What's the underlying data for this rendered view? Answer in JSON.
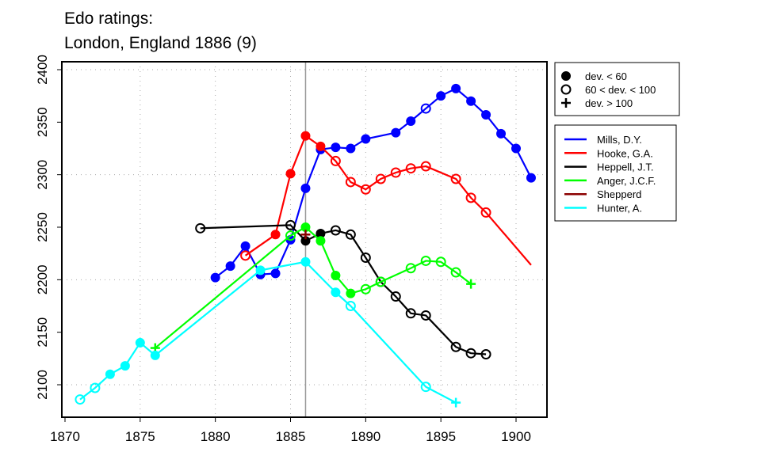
{
  "chart_data": {
    "type": "line",
    "title": [
      "Edo ratings:",
      "London, England 1886 (9)"
    ],
    "xlabel": "",
    "ylabel": "",
    "xlim": [
      1869.5,
      1902.2
    ],
    "ylim": [
      2070,
      2406
    ],
    "x_ticks": [
      1870,
      1875,
      1880,
      1885,
      1890,
      1895,
      1900
    ],
    "y_ticks": [
      2100,
      2150,
      2200,
      2250,
      2300,
      2350,
      2400
    ],
    "x_grid": [
      1875,
      1880,
      1885,
      1890,
      1895,
      1900
    ],
    "y_grid": [
      2100,
      2200,
      2300,
      2400
    ],
    "grid": true,
    "reference_year": 1886,
    "marker_legend": {
      "placement": "top-right-outside",
      "entries": [
        {
          "marker": "filled-circle",
          "label": "dev. < 60"
        },
        {
          "marker": "open-circle",
          "label": "60 < dev. < 100"
        },
        {
          "marker": "plus",
          "label": "dev. > 100"
        }
      ]
    },
    "series_legend_placement": "right-outside",
    "series": [
      {
        "name": "Mills, D.Y.",
        "color": "#0000ff",
        "points": [
          [
            1880,
            2202,
            "filled"
          ],
          [
            1881,
            2213,
            "filled"
          ],
          [
            1882,
            2232,
            "filled"
          ],
          [
            1883,
            2205,
            "filled"
          ],
          [
            1884,
            2206,
            "filled"
          ],
          [
            1885,
            2238,
            "filled"
          ],
          [
            1886,
            2287,
            "filled"
          ],
          [
            1887,
            2324,
            "filled"
          ],
          [
            1888,
            2326,
            "filled"
          ],
          [
            1889,
            2325,
            "filled"
          ],
          [
            1890,
            2334,
            "filled"
          ],
          [
            1892,
            2340,
            "filled"
          ],
          [
            1893,
            2351,
            "filled"
          ],
          [
            1894,
            2363,
            "open"
          ],
          [
            1895,
            2375,
            "filled"
          ],
          [
            1896,
            2382,
            "filled"
          ],
          [
            1897,
            2370,
            "filled"
          ],
          [
            1898,
            2357,
            "filled"
          ],
          [
            1899,
            2339,
            "filled"
          ],
          [
            1900,
            2325,
            "filled"
          ],
          [
            1901,
            2297,
            "filled"
          ]
        ]
      },
      {
        "name": "Hooke, G.A.",
        "color": "#ff0000",
        "points": [
          [
            1882,
            2223,
            "open"
          ],
          [
            1884,
            2243,
            "filled"
          ],
          [
            1885,
            2301,
            "filled"
          ],
          [
            1886,
            2337,
            "filled"
          ],
          [
            1887,
            2327,
            "filled"
          ],
          [
            1888,
            2313,
            "open"
          ],
          [
            1889,
            2293,
            "open"
          ],
          [
            1890,
            2286,
            "open"
          ],
          [
            1891,
            2296,
            "open"
          ],
          [
            1892,
            2302,
            "open"
          ],
          [
            1893,
            2306,
            "open"
          ],
          [
            1894,
            2308,
            "open"
          ],
          [
            1896,
            2296,
            "open"
          ],
          [
            1897,
            2278,
            "open"
          ],
          [
            1898,
            2264,
            "open"
          ],
          [
            1901,
            2214,
            "none"
          ]
        ]
      },
      {
        "name": "Heppell, J.T.",
        "color": "#000000",
        "points": [
          [
            1879,
            2249,
            "open"
          ],
          [
            1885,
            2252,
            "open"
          ],
          [
            1886,
            2237,
            "filled"
          ],
          [
            1887,
            2244,
            "filled"
          ],
          [
            1888,
            2247,
            "open"
          ],
          [
            1889,
            2243,
            "open"
          ],
          [
            1890,
            2221,
            "open"
          ],
          [
            1891,
            2198,
            "open"
          ],
          [
            1892,
            2184,
            "open"
          ],
          [
            1893,
            2168,
            "open"
          ],
          [
            1894,
            2166,
            "open"
          ],
          [
            1896,
            2136,
            "open"
          ],
          [
            1897,
            2130,
            "open"
          ],
          [
            1898,
            2129,
            "open"
          ]
        ]
      },
      {
        "name": "Anger, J.C.F.",
        "color": "#00ff00",
        "points": [
          [
            1876,
            2135,
            "plus"
          ],
          [
            1885,
            2242,
            "open"
          ],
          [
            1886,
            2250,
            "filled"
          ],
          [
            1887,
            2237,
            "filled"
          ],
          [
            1888,
            2204,
            "filled"
          ],
          [
            1889,
            2187,
            "filled"
          ],
          [
            1890,
            2191,
            "open"
          ],
          [
            1891,
            2198,
            "open"
          ],
          [
            1893,
            2211,
            "open"
          ],
          [
            1894,
            2218,
            "open"
          ],
          [
            1895,
            2217,
            "open"
          ],
          [
            1896,
            2207,
            "open"
          ],
          [
            1897,
            2196,
            "plus"
          ]
        ]
      },
      {
        "name": "Shepperd",
        "color": "#8b0000",
        "points": [
          [
            1886,
            2243,
            "plus"
          ]
        ]
      },
      {
        "name": "Hunter, A.",
        "color": "#00ffff",
        "points": [
          [
            1871,
            2086,
            "open"
          ],
          [
            1872,
            2097,
            "open"
          ],
          [
            1873,
            2110,
            "filled"
          ],
          [
            1874,
            2118,
            "filled"
          ],
          [
            1875,
            2140,
            "filled"
          ],
          [
            1876,
            2128,
            "filled"
          ],
          [
            1883,
            2209,
            "filled"
          ],
          [
            1886,
            2217,
            "filled"
          ],
          [
            1888,
            2188,
            "filled"
          ],
          [
            1889,
            2175,
            "open"
          ],
          [
            1894,
            2098,
            "open"
          ],
          [
            1896,
            2083,
            "plus"
          ]
        ]
      }
    ]
  }
}
